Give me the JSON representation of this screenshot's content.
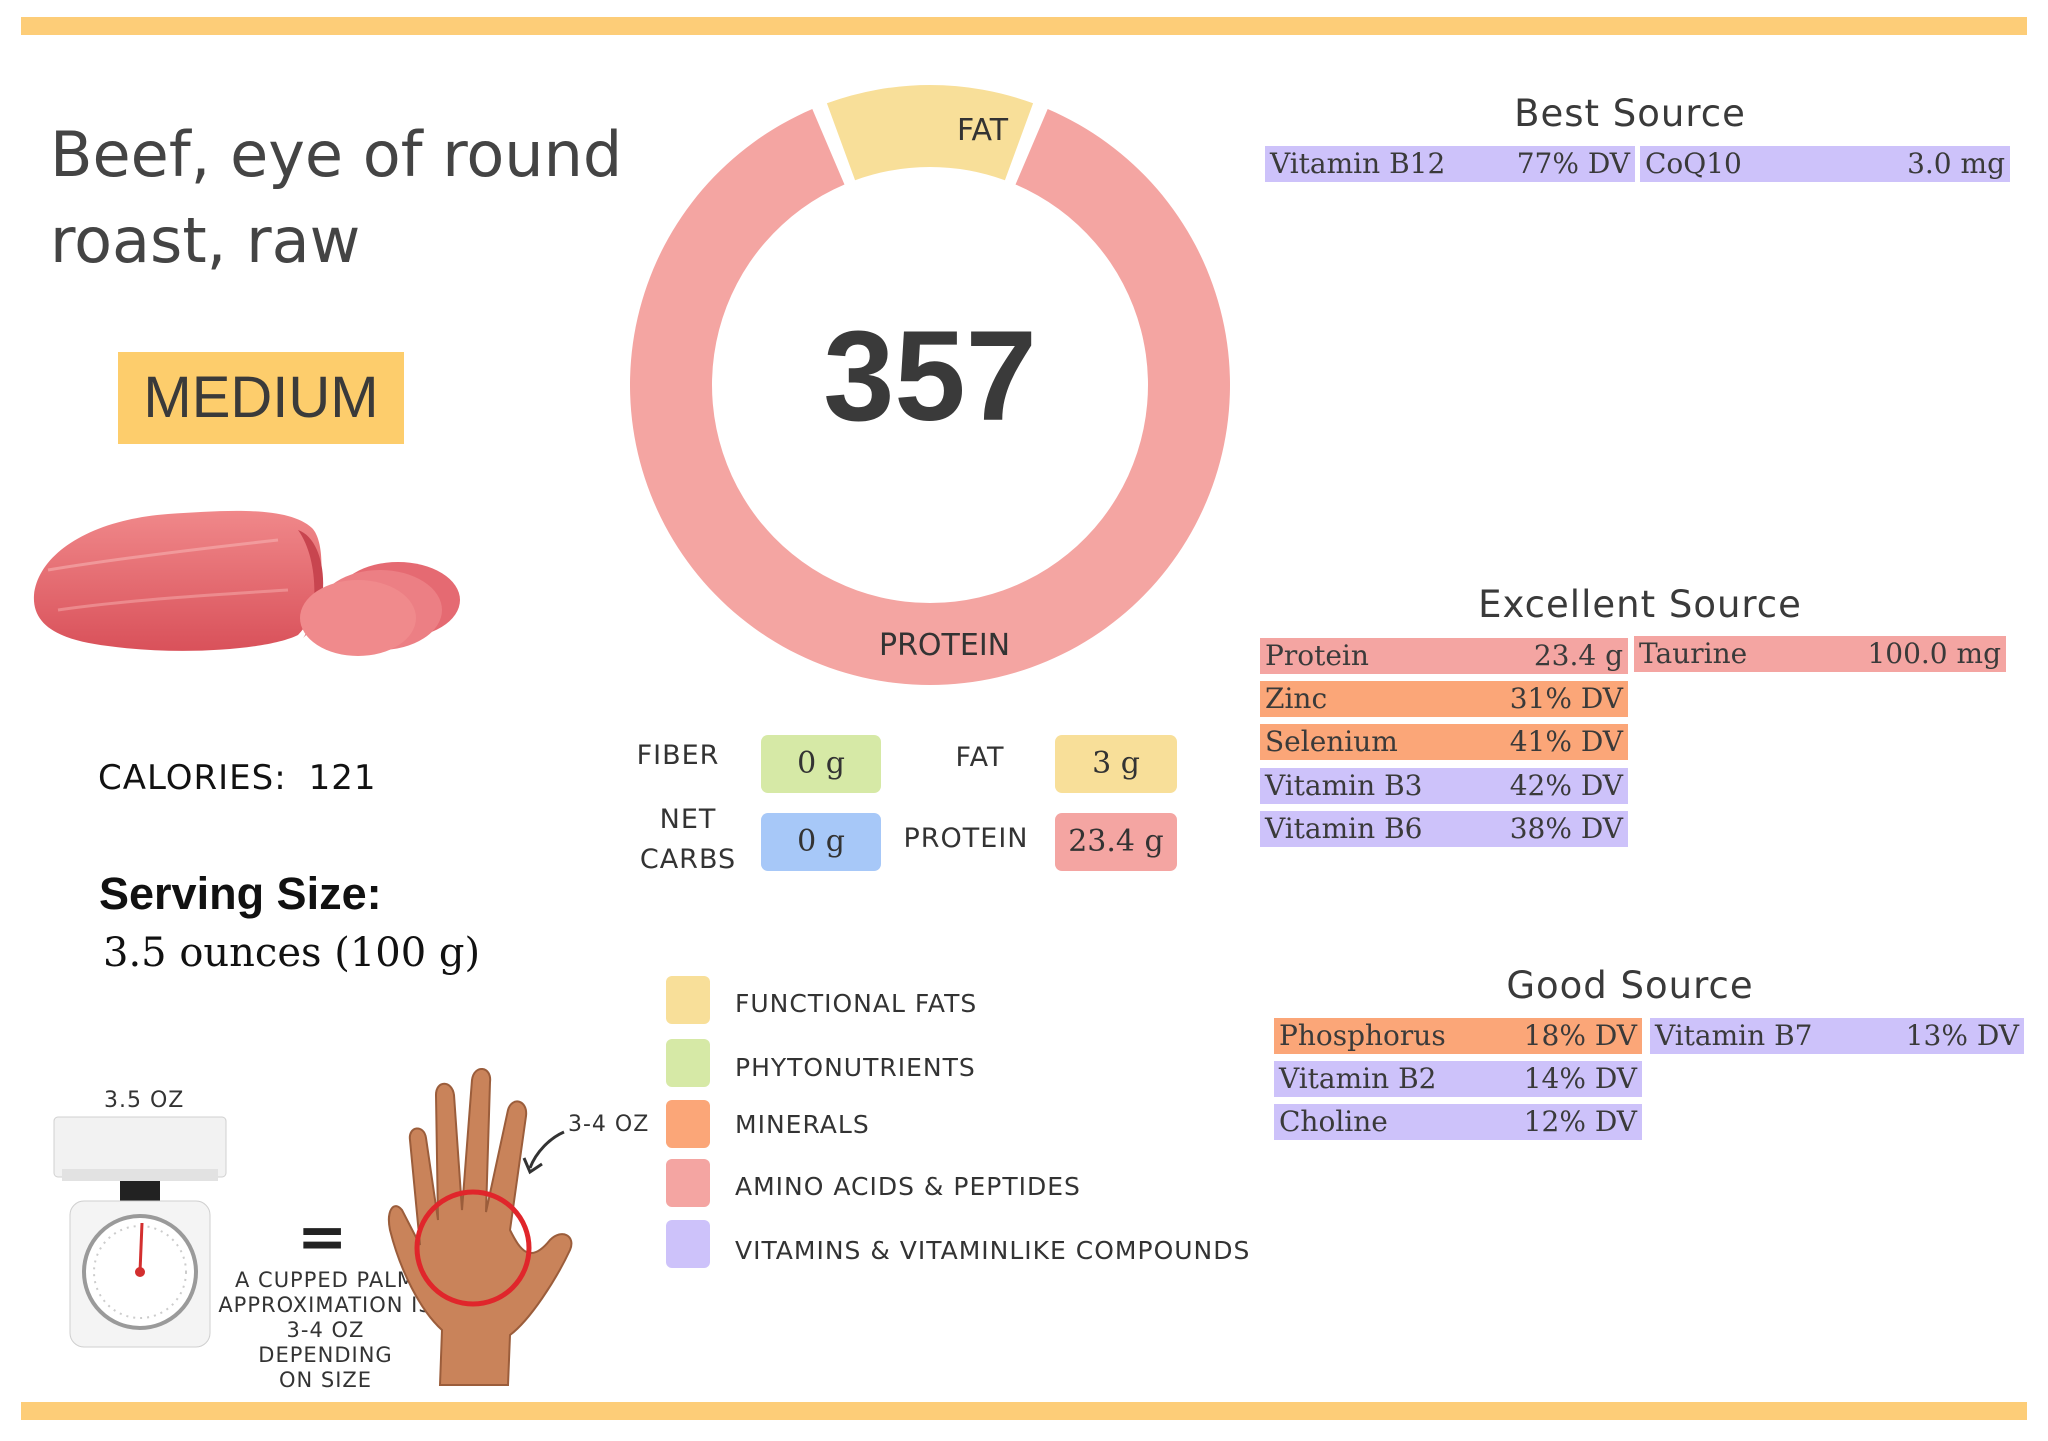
{
  "food": {
    "title_line1": "Beef, eye of round",
    "title_line2": "roast, raw",
    "badge": "MEDIUM"
  },
  "calories": {
    "label": "CALORIES:",
    "value": "121"
  },
  "serving": {
    "title": "Serving Size:",
    "value": "3.5 ounces (100 g)"
  },
  "donut": {
    "center_value": "357",
    "segments": [
      {
        "name": "FAT",
        "fraction": 0.12,
        "color": "#f8df99"
      },
      {
        "name": "PROTEIN",
        "fraction": 0.88,
        "color": "#f4a5a2"
      }
    ]
  },
  "macros": {
    "fiber": {
      "label": "FIBER",
      "value": "0 g",
      "color": "#d6e9a6"
    },
    "net_carbs": {
      "label_line1": "NET",
      "label_line2": "CARBS",
      "value": "0 g",
      "color": "#a7c8f8"
    },
    "fat": {
      "label": "FAT",
      "value": "3 g",
      "color": "#f8df99"
    },
    "protein": {
      "label": "PROTEIN",
      "value": "23.4 g",
      "color": "#f4a5a2"
    }
  },
  "legend": [
    {
      "label": "FUNCTIONAL  FATS",
      "color": "#f8df99"
    },
    {
      "label": "PHYTONUTRIENTS",
      "color": "#d6e9a6"
    },
    {
      "label": "MINERALS",
      "color": "#fba678"
    },
    {
      "label": "AMINO ACIDS & PEPTIDES",
      "color": "#f4a5a2"
    },
    {
      "label": "VITAMINS & VITAMINLIKE COMPOUNDS",
      "color": "#cdc2fa"
    }
  ],
  "best_source": {
    "title": "Best Source",
    "items": [
      {
        "name": "Vitamin B12",
        "value": "77% DV",
        "color": "#cdc2fa"
      },
      {
        "name": "CoQ10",
        "value": "3.0 mg",
        "color": "#cdc2fa"
      }
    ]
  },
  "excellent_source": {
    "title": "Excellent Source",
    "items": [
      {
        "name": "Protein",
        "value": "23.4 g",
        "color": "#f4a5a2"
      },
      {
        "name": "Taurine",
        "value": "100.0 mg",
        "color": "#f4a5a2"
      },
      {
        "name": "Zinc",
        "value": "31% DV",
        "color": "#fba678"
      },
      {
        "name": "Selenium",
        "value": "41% DV",
        "color": "#fba678"
      },
      {
        "name": "Vitamin B3",
        "value": "42% DV",
        "color": "#cdc2fa"
      },
      {
        "name": "Vitamin B6",
        "value": "38% DV",
        "color": "#cdc2fa"
      }
    ]
  },
  "good_source": {
    "title": "Good Source",
    "items": [
      {
        "name": "Phosphorus",
        "value": "18% DV",
        "color": "#fba678"
      },
      {
        "name": "Vitamin B7",
        "value": "13% DV",
        "color": "#cdc2fa"
      },
      {
        "name": "Vitamin B2",
        "value": "14% DV",
        "color": "#cdc2fa"
      },
      {
        "name": "Choline",
        "value": "12% DV",
        "color": "#cdc2fa"
      }
    ]
  },
  "portion": {
    "scale_label": "3.5 OZ",
    "equals": "=",
    "hand_label": "3-4 OZ",
    "caption_line1": "A CUPPED PALM",
    "caption_line2": "APPROXIMATION IS",
    "caption_line3": "3-4 OZ DEPENDING",
    "caption_line4": "ON SIZE"
  },
  "colors": {
    "bar": "#fdcd78",
    "badge": "#fdcd6c",
    "hand_circle": "#e0262b"
  }
}
